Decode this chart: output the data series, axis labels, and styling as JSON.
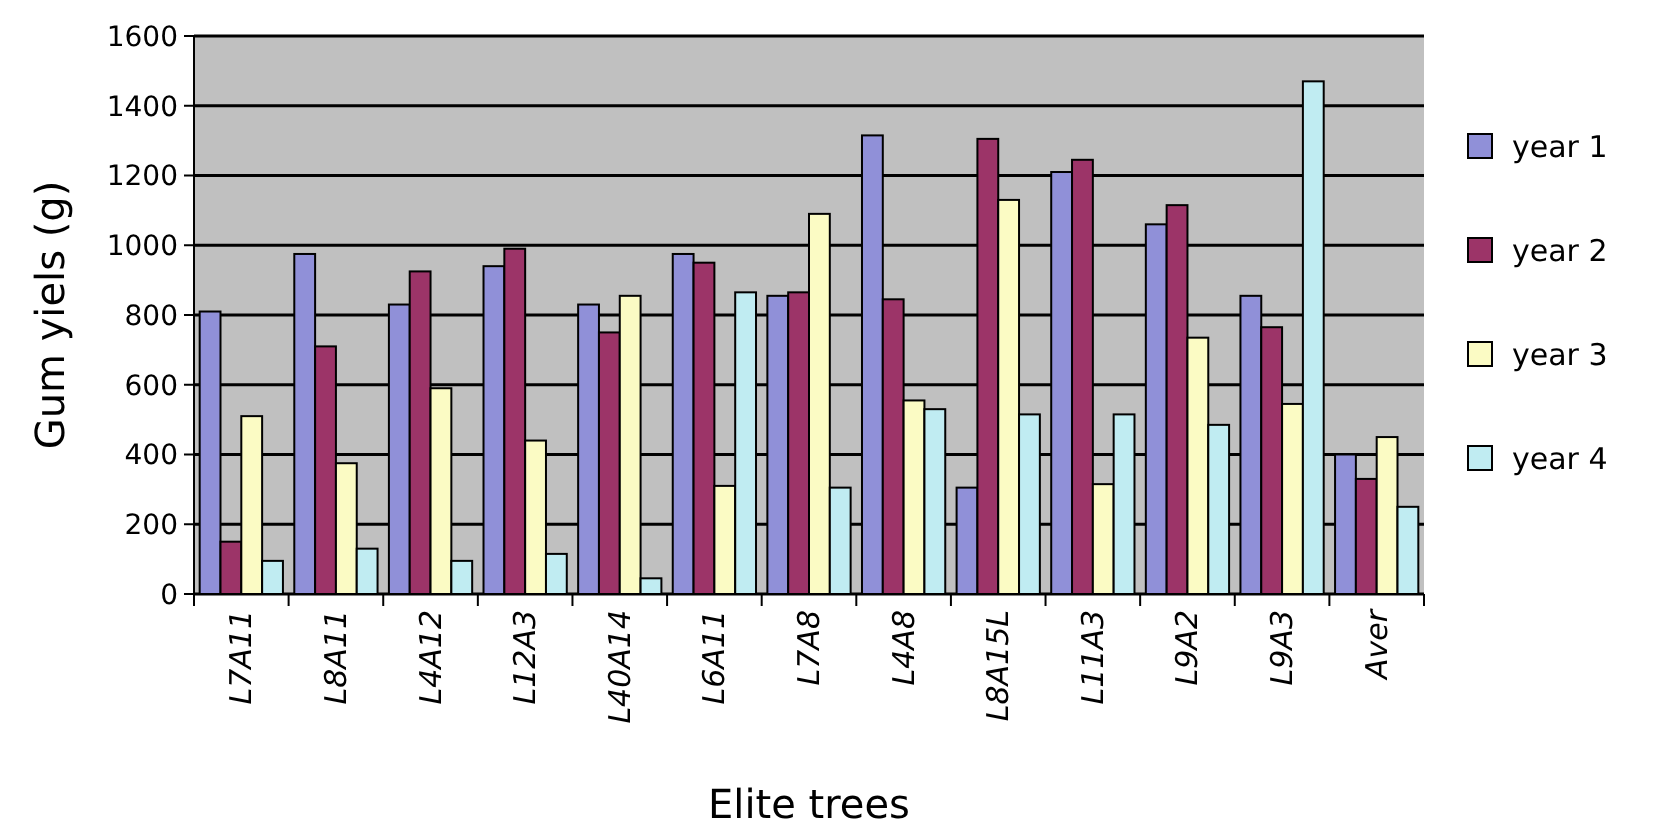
{
  "chart_data": {
    "type": "bar",
    "xlabel": "Elite trees",
    "ylabel": "Gum yiels (g)",
    "categories": [
      "L7A11",
      "L8A11",
      "L4A12",
      "L12A3",
      "L40A14",
      "L6A11",
      "L7A8",
      "L4A8",
      "L8A15L",
      "L11A3",
      "L9A2",
      "L9A3",
      "Aver"
    ],
    "series": [
      {
        "name": "year 1",
        "color": "#9090d8",
        "values": [
          810,
          975,
          830,
          940,
          830,
          975,
          855,
          1315,
          305,
          1210,
          1060,
          855,
          400
        ]
      },
      {
        "name": "year 2",
        "color": "#9c3468",
        "values": [
          150,
          710,
          925,
          990,
          750,
          950,
          865,
          845,
          1305,
          1245,
          1115,
          765,
          330
        ]
      },
      {
        "name": "year 3",
        "color": "#fbfbc4",
        "values": [
          510,
          375,
          590,
          440,
          855,
          310,
          1090,
          555,
          1130,
          315,
          735,
          545,
          450
        ]
      },
      {
        "name": "year 4",
        "color": "#c0ecf2",
        "values": [
          95,
          130,
          95,
          115,
          45,
          865,
          305,
          530,
          515,
          515,
          485,
          1470,
          250
        ]
      }
    ],
    "ylim": [
      0,
      1600
    ],
    "yticks": [
      0,
      200,
      400,
      600,
      800,
      1000,
      1200,
      1400,
      1600
    ],
    "grid": "y",
    "legend": "right"
  }
}
